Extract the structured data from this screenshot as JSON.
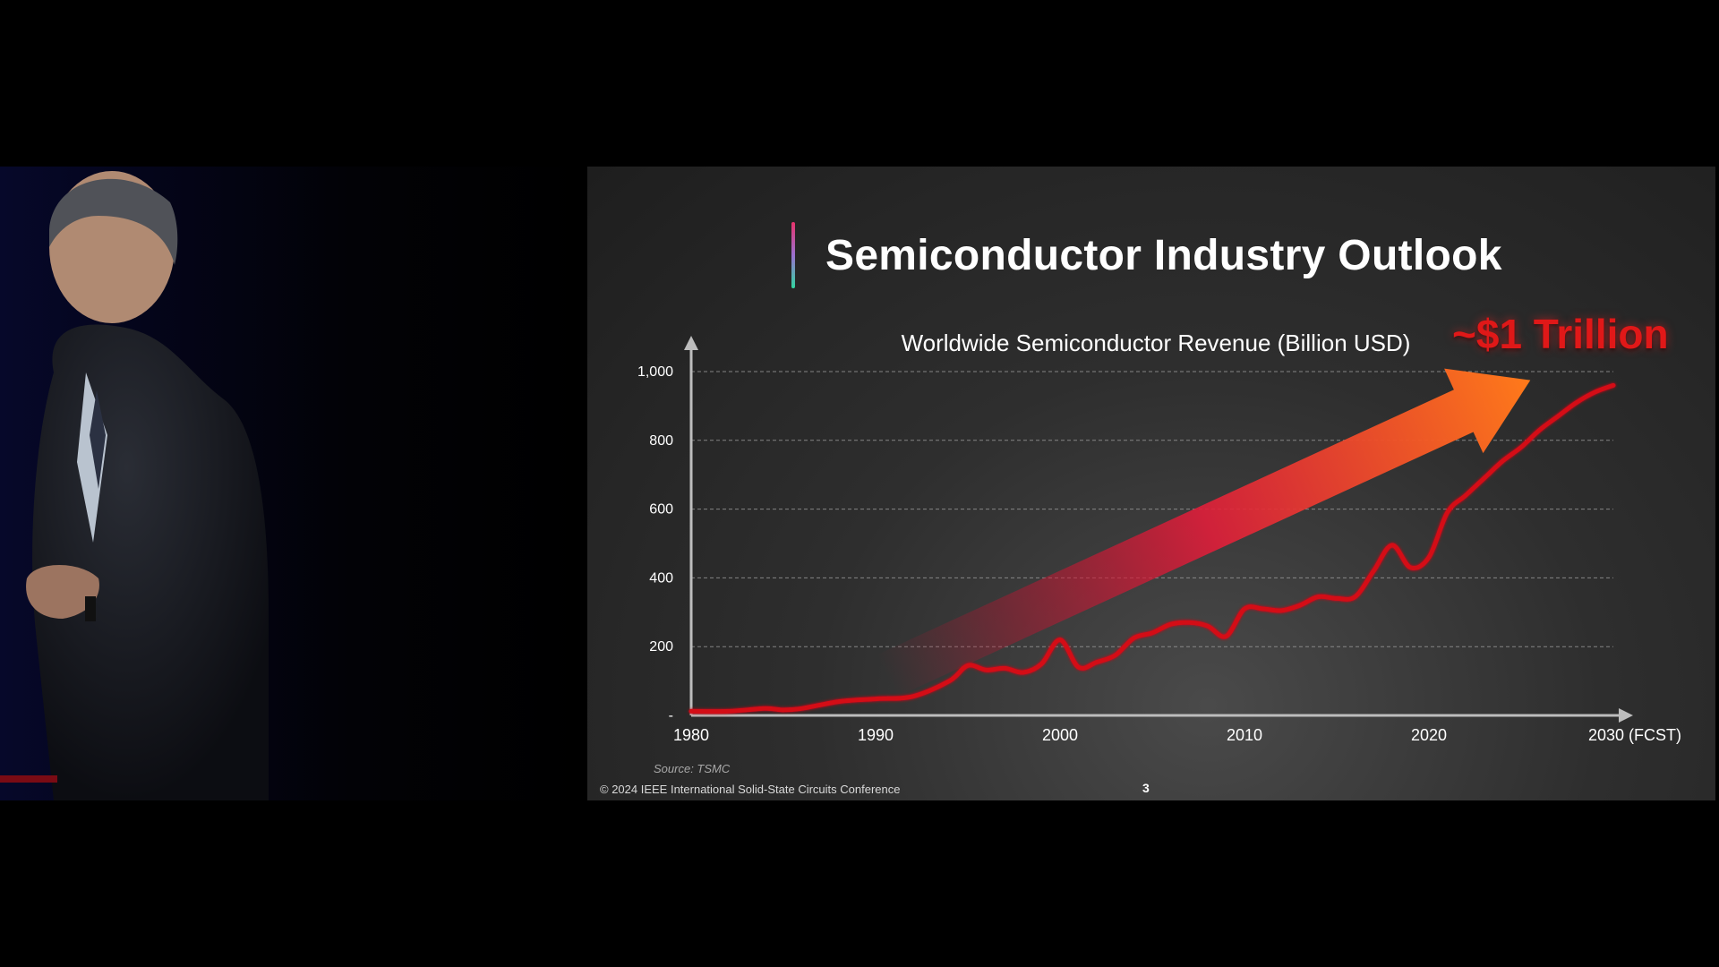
{
  "slide": {
    "title": "Semiconductor Industry Outlook",
    "highlight_label": "~$1 Trillion",
    "source": "Source: TSMC",
    "copyright": "© 2024 IEEE International Solid-State Circuits Conference",
    "page_number": "3"
  },
  "colors": {
    "line": "#d40a16",
    "arrow_start": "#c8102e",
    "arrow_end": "#ff7a1a",
    "highlight_text": "#e01818"
  },
  "chart_data": {
    "type": "line",
    "title": "Worldwide Semiconductor Revenue (Billion USD)",
    "xlabel": "",
    "ylabel": "",
    "xlim": [
      1980,
      2030
    ],
    "ylim": [
      0,
      1000
    ],
    "x_ticks": [
      {
        "value": 1980,
        "label": "1980"
      },
      {
        "value": 1990,
        "label": "1990"
      },
      {
        "value": 2000,
        "label": "2000"
      },
      {
        "value": 2010,
        "label": "2010"
      },
      {
        "value": 2020,
        "label": "2020"
      },
      {
        "value": 2030,
        "label": "2030 (FCST)"
      }
    ],
    "y_ticks": [
      {
        "value": 0,
        "label": "-"
      },
      {
        "value": 200,
        "label": "200"
      },
      {
        "value": 400,
        "label": "400"
      },
      {
        "value": 600,
        "label": "600"
      },
      {
        "value": 800,
        "label": "800"
      },
      {
        "value": 1000,
        "label": "1,000"
      }
    ],
    "grid": true,
    "series": [
      {
        "x": [
          1980,
          1982,
          1984,
          1985,
          1986,
          1988,
          1990,
          1992,
          1994,
          1995,
          1996,
          1997,
          1998,
          1999,
          2000,
          2001,
          2002,
          2003,
          2004,
          2005,
          2006,
          2007,
          2008,
          2009,
          2010,
          2011,
          2012,
          2013,
          2014,
          2015,
          2016,
          2017,
          2018,
          2019,
          2020,
          2021,
          2022,
          2023,
          2024,
          2025,
          2026,
          2027,
          2028,
          2029,
          2030
        ],
        "y": [
          12,
          12,
          20,
          16,
          20,
          40,
          48,
          55,
          100,
          145,
          132,
          137,
          125,
          150,
          220,
          140,
          155,
          175,
          225,
          240,
          265,
          270,
          260,
          230,
          310,
          310,
          305,
          320,
          345,
          340,
          345,
          420,
          495,
          430,
          460,
          590,
          640,
          690,
          740,
          780,
          830,
          870,
          910,
          940,
          960
        ]
      }
    ],
    "arrow": {
      "start": {
        "x": 1990,
        "y": 100
      },
      "end": {
        "x": 2025.5,
        "y": 975
      }
    }
  }
}
